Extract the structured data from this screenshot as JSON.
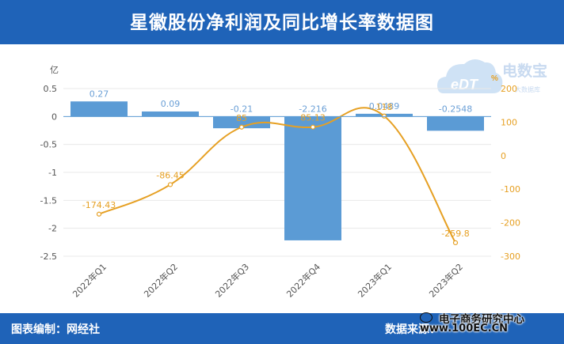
{
  "header": {
    "title": "星徽股份净利润及同比增长率数据图"
  },
  "footer": {
    "left": "图表编制：网经社",
    "right": "数据来源："
  },
  "watermark": {
    "name": "电子商务研究中心",
    "url": "www.100EC.CN"
  },
  "logo": {
    "text": "电数宝",
    "badge": "eDT",
    "sub": "大数据库",
    "sign": "%"
  },
  "colors": {
    "header": "#1f63b8",
    "bar": "#5b9bd5",
    "line": "#e6a023",
    "bar_label": "#6a9fd6",
    "line_label": "#e6a023"
  },
  "chart_data": {
    "type": "bar",
    "categories": [
      "2022年Q1",
      "2022年Q2",
      "2022年Q3",
      "2022年Q4",
      "2023年Q1",
      "2023年Q2"
    ],
    "ylabel": "亿",
    "ylim": [
      -2.5,
      0.5
    ],
    "yticks": [
      "0.5",
      "0",
      "-0.5",
      "-1",
      "-1.5",
      "-2",
      "-2.5"
    ],
    "y2lim": [
      -300,
      200
    ],
    "y2ticks": [
      "200",
      "100",
      "0",
      "-100",
      "-200",
      "-300"
    ],
    "series": [
      {
        "type": "bar",
        "axis": "left",
        "values": [
          0.27,
          0.09,
          -0.21,
          -2.216,
          0.0489,
          -0.2548
        ],
        "labels": [
          "0.27",
          "0.09",
          "-0.21",
          "-2.216",
          "0.0489",
          "-0.2548"
        ]
      },
      {
        "type": "line",
        "axis": "right",
        "smooth": true,
        "values": [
          -174.43,
          -86.45,
          85,
          85.13,
          118,
          -259.8
        ],
        "labels": [
          "-174.43",
          "-86.45",
          "85",
          "85.13",
          "118",
          "-259.8"
        ]
      }
    ],
    "grid": true
  }
}
